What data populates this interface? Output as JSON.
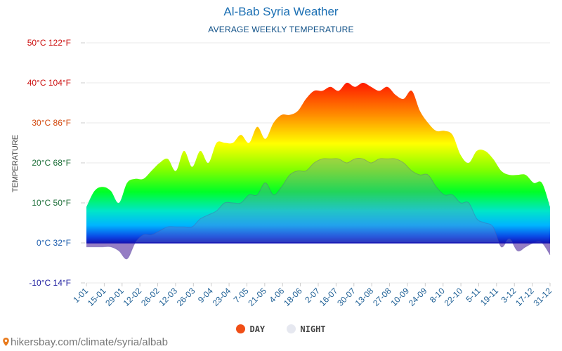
{
  "colors": {
    "day": "#f04e16",
    "night": "#e6e8f0",
    "title": "#1b6fb3",
    "tick_warm": "#cc1111",
    "tick_mid": "#d24a0f",
    "tick_cool": "#1f6f3a",
    "tick_zero": "#1e5eae",
    "tick_cold": "#2020a0",
    "xtick": "#1c5e94",
    "grid": "#e8e8e8",
    "frost": "#8a6fbe"
  },
  "chart_data": {
    "type": "area",
    "title": "Al-Bab Syria Weather",
    "subtitle": "AVERAGE WEEKLY TEMPERATURE",
    "ylabel": "TEMPERATURE",
    "xlabel": "",
    "ylim": [
      -10,
      50
    ],
    "grid": true,
    "legend_position": "bottom",
    "y_ticks": [
      {
        "celsius": 50,
        "label": "50°C 122°F"
      },
      {
        "celsius": 40,
        "label": "40°C 104°F"
      },
      {
        "celsius": 30,
        "label": "30°C 86°F"
      },
      {
        "celsius": 20,
        "label": "20°C 68°F"
      },
      {
        "celsius": 10,
        "label": "10°C 50°F"
      },
      {
        "celsius": 0,
        "label": "0°C 32°F"
      },
      {
        "celsius": -10,
        "label": "-10°C 14°F"
      }
    ],
    "x_labels": [
      "1-01",
      "15-01",
      "29-01",
      "12-02",
      "26-02",
      "12-03",
      "26-03",
      "9-04",
      "23-04",
      "7-05",
      "21-05",
      "4-06",
      "18-06",
      "2-07",
      "16-07",
      "30-07",
      "13-08",
      "27-08",
      "10-09",
      "24-09",
      "8-10",
      "22-10",
      "5-11",
      "19-11",
      "3-12",
      "17-12",
      "31-12"
    ],
    "series": [
      {
        "name": "DAY",
        "values": [
          9,
          13,
          14,
          13,
          10,
          15,
          16,
          16,
          18,
          20,
          21,
          18,
          23,
          19,
          23,
          20,
          25,
          25,
          25,
          27,
          25,
          29,
          26,
          30,
          32,
          32,
          33,
          36,
          38,
          38,
          39,
          38,
          40,
          39,
          40,
          39,
          38,
          39,
          37,
          36,
          38,
          33,
          30,
          28,
          28,
          27,
          22,
          20,
          23,
          23,
          21,
          18,
          17,
          17,
          17,
          15,
          15,
          9
        ]
      },
      {
        "name": "NIGHT",
        "values": [
          -1,
          -1,
          -1,
          -1,
          -2,
          -4,
          0,
          2,
          2,
          3,
          4,
          4,
          4,
          4,
          6,
          7,
          8,
          10,
          10,
          10,
          12,
          12,
          15,
          12,
          14,
          17,
          18,
          18,
          20,
          21,
          21,
          21,
          20,
          21,
          21,
          20,
          21,
          21,
          21,
          20,
          18,
          17,
          17,
          14,
          12,
          12,
          10,
          10,
          6,
          5,
          4,
          -1,
          1,
          -2,
          -1,
          0,
          0,
          -3
        ]
      }
    ]
  },
  "legend": {
    "day": "DAY",
    "night": "NIGHT"
  },
  "footer": {
    "url": "hikersbay.com/climate/syria/albab"
  }
}
